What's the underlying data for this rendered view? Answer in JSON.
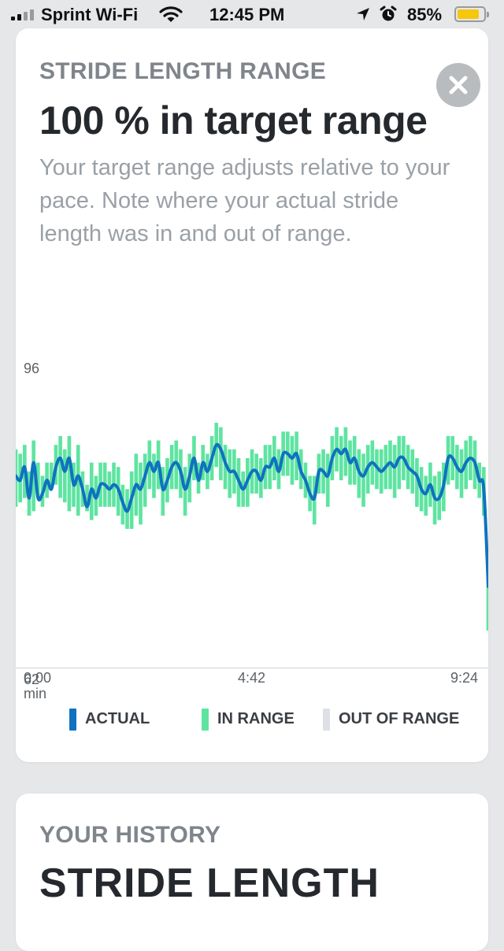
{
  "status_bar": {
    "carrier": "Sprint Wi-Fi",
    "time": "12:45 PM",
    "battery_percent": "85%",
    "battery_level": 0.85,
    "battery_color": "#f6c70b"
  },
  "card": {
    "eyebrow": "STRIDE LENGTH RANGE",
    "headline": "100 % in target range",
    "description": "Your target range adjusts relative to your pace. Note where your actual stride length was in and out of range.",
    "close_icon": "close-icon"
  },
  "chart_data": {
    "type": "line",
    "ylim": [
      62,
      96
    ],
    "y_tick_labels": [
      "96",
      "62"
    ],
    "x_tick_labels": [
      "0:00",
      "4:42",
      "9:24"
    ],
    "x_unit_label": "min",
    "x_range_seconds": [
      0,
      564
    ],
    "legend": [
      "ACTUAL",
      "IN RANGE",
      "OUT OF RANGE"
    ],
    "colors": {
      "actual": "#0f72c0",
      "in_range": "#5ee4a1",
      "out_of_range": "#dde1e5"
    },
    "actual": [
      83.5,
      83,
      84.5,
      81,
      85,
      81,
      81.5,
      83,
      82,
      84.5,
      85.5,
      84,
      85.5,
      82.5,
      83.5,
      82,
      80,
      82,
      81,
      82.5,
      82.5,
      82,
      82.5,
      82,
      80.5,
      79.5,
      81,
      82.5,
      82,
      83.5,
      85,
      84,
      85,
      82,
      83,
      84.5,
      85,
      84,
      82,
      83.5,
      85.5,
      83,
      85,
      84,
      85.5,
      87,
      86.5,
      85,
      84,
      84,
      83,
      82,
      83,
      84,
      84,
      83,
      84.5,
      84.5,
      85.5,
      84,
      86,
      86,
      85.5,
      86,
      84,
      83,
      81.5,
      81,
      84,
      84,
      83.5,
      85.5,
      86.5,
      86,
      86.5,
      85,
      85.5,
      84,
      83.5,
      84.5,
      85,
      84.5,
      84,
      84.5,
      85,
      84.5,
      85.5,
      85.5,
      84.5,
      84,
      83.5,
      82,
      81.5,
      82.5,
      81,
      81,
      82.5,
      85.5,
      85.5,
      84.5,
      84,
      85,
      85.5,
      85,
      83,
      82,
      71
    ],
    "band_low": [
      80,
      80.5,
      81,
      79,
      79.5,
      81,
      80,
      81,
      82,
      82.5,
      81,
      80.5,
      79.5,
      80,
      79,
      80,
      79.5,
      78.5,
      79,
      80,
      80,
      80,
      80,
      79,
      78,
      77.5,
      77.5,
      79,
      78,
      80,
      82,
      81,
      82,
      79,
      80.5,
      82,
      82,
      81,
      79,
      80.5,
      83,
      81.5,
      83,
      82,
      83,
      84.5,
      83,
      82,
      81,
      81.5,
      80,
      80,
      80,
      81.5,
      81.5,
      81,
      82,
      82,
      83,
      82,
      83.5,
      83.5,
      82.5,
      83,
      82,
      81,
      79.5,
      78,
      81.5,
      81.5,
      80,
      83,
      84,
      83,
      83.5,
      82.5,
      82.5,
      81,
      80,
      81.5,
      82.5,
      82,
      81.5,
      82,
      82,
      81,
      82,
      83,
      82,
      81.5,
      80,
      79.5,
      79,
      80,
      78,
      78.5,
      79.5,
      82.5,
      83,
      82,
      81,
      82,
      83,
      82,
      81,
      79,
      66
    ],
    "band_high": [
      86.5,
      86,
      87,
      84,
      87.5,
      85,
      83.5,
      85,
      85,
      87,
      88,
      86.5,
      88,
      85,
      87,
      84,
      82.5,
      85,
      83.5,
      85,
      85,
      84,
      85,
      84.5,
      82.5,
      82,
      84,
      86,
      85,
      86,
      87.5,
      86,
      87.5,
      84.5,
      85.5,
      87,
      87.5,
      86.5,
      84.5,
      86,
      88,
      85,
      87,
      86,
      88,
      89.5,
      89,
      87,
      86.5,
      86.5,
      85.5,
      84,
      85.5,
      86.5,
      86,
      85.5,
      87,
      87,
      88,
      86.5,
      88.5,
      88.5,
      88,
      88.5,
      86.5,
      85,
      83.5,
      83.5,
      86,
      86.5,
      86,
      88,
      89,
      88,
      89,
      87.5,
      88,
      86.5,
      86,
      87,
      87.5,
      86.5,
      86.5,
      87,
      87.5,
      87,
      88,
      88,
      87,
      86.5,
      85.5,
      84.5,
      83.5,
      85,
      83.5,
      84,
      85,
      88,
      88,
      87,
      86.5,
      87.5,
      88,
      87.5,
      85,
      84.5,
      75
    ]
  }
}
